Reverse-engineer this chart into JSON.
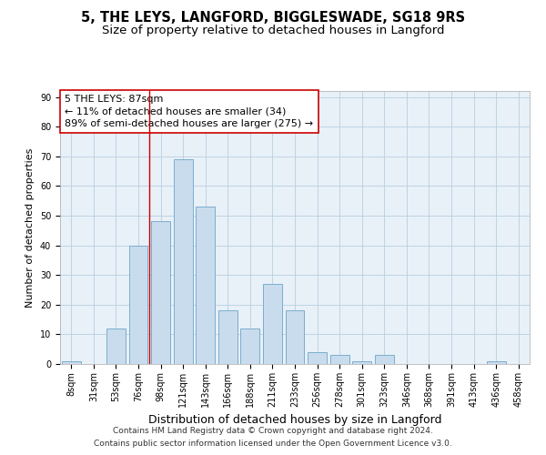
{
  "title1": "5, THE LEYS, LANGFORD, BIGGLESWADE, SG18 9RS",
  "title2": "Size of property relative to detached houses in Langford",
  "xlabel": "Distribution of detached houses by size in Langford",
  "ylabel": "Number of detached properties",
  "footer_line1": "Contains HM Land Registry data © Crown copyright and database right 2024.",
  "footer_line2": "Contains public sector information licensed under the Open Government Licence v3.0.",
  "annotation_line1": "5 THE LEYS: 87sqm",
  "annotation_line2": "← 11% of detached houses are smaller (34)",
  "annotation_line3": "89% of semi-detached houses are larger (275) →",
  "bar_categories": [
    "8sqm",
    "31sqm",
    "53sqm",
    "76sqm",
    "98sqm",
    "121sqm",
    "143sqm",
    "166sqm",
    "188sqm",
    "211sqm",
    "233sqm",
    "256sqm",
    "278sqm",
    "301sqm",
    "323sqm",
    "346sqm",
    "368sqm",
    "391sqm",
    "413sqm",
    "436sqm",
    "458sqm"
  ],
  "bar_values": [
    1,
    0,
    12,
    40,
    48,
    69,
    53,
    18,
    12,
    27,
    18,
    4,
    3,
    1,
    3,
    0,
    0,
    0,
    0,
    1,
    0
  ],
  "bar_color": "#c9dcee",
  "bar_edge_color": "#7aaecc",
  "vline_color": "#cc0000",
  "vline_x_index": 3.5,
  "ylim_max": 92,
  "yticks": [
    0,
    10,
    20,
    30,
    40,
    50,
    60,
    70,
    80,
    90
  ],
  "plot_bg_color": "#e8f0f8",
  "grid_color": "#b8cfe0",
  "annotation_box_edge_color": "#cc0000",
  "title1_fontsize": 10.5,
  "title2_fontsize": 9.5,
  "xlabel_fontsize": 9,
  "ylabel_fontsize": 8,
  "tick_fontsize": 7,
  "annotation_fontsize": 8,
  "footer_fontsize": 6.5
}
